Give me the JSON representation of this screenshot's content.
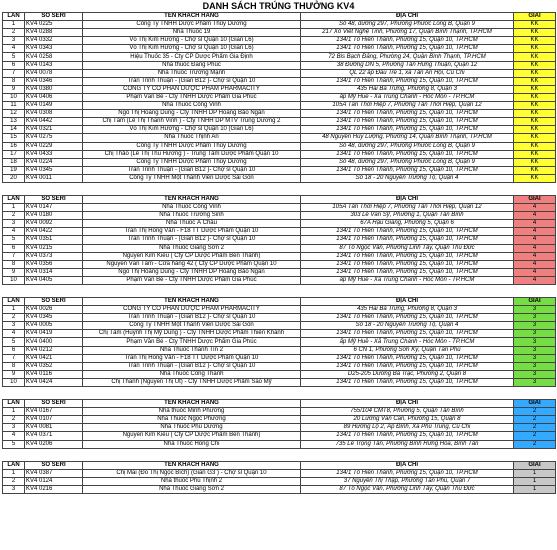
{
  "title": "DANH SÁCH TRÚNG THƯỞNG KV4",
  "headers_first": {
    "lan": "LẦN",
    "seri": "SỐ SERI",
    "name": "TÊN KHÁCH HÀNG",
    "addr": "ĐỊA CHỈ",
    "prize": "GIẢI"
  },
  "headers_other": {
    "lan": "LẦN",
    "seri": "SỐ SERI",
    "name": "TÊN KHÁCH HÀNG",
    "addr": "ĐỊA CHỈ",
    "prize": "GIẢI"
  },
  "colors": {
    "kk": "#ffff33",
    "p4": "#f08080",
    "p3": "#77dd44",
    "p2": "#33aaff",
    "p1": "#c8c8c8"
  },
  "sections": [
    {
      "color": "#ffff33",
      "rows": [
        [
          "1",
          "KV4 0225",
          "Công Ty TNHH Dược Phẩm Thủy Dương",
          "Số 48, đường 297, Phường Phước Long B, Quận 9",
          "KK"
        ],
        [
          "2",
          "KV4 0288",
          "Nhà Thuốc 19",
          "217 Xô Viết Nghệ Tĩnh, Phường 17, Quận Bình Thạnh, TP.HCM",
          "KK"
        ],
        [
          "3",
          "KV4 0332",
          "Võ Thị Kim Hương - Chợ sỉ Quận 10 (Gian L6)",
          "134/1 Tô Hiến Thành, Phường 15, Quận 10, TP.HCM",
          "KK"
        ],
        [
          "4",
          "KV4 0343",
          "Võ Thị Kim Hương - Chợ sỉ Quận 10 (Gian L6)",
          "134/1 Tô Hiến Thành, Phường 15, Quận 10, TP.HCM",
          "KK"
        ],
        [
          "5",
          "KV4 0258",
          "Hiệu Thuốc 35 - Cty CP Dược Phẩm Gia Định",
          "72 Bis Bạch Đằng, Phường 24, Quận Bình Thạnh, TP.HCM",
          "KK"
        ],
        [
          "6",
          "KV4 0143",
          "Nhà thuốc Đăng Phúc",
          "38 Đường DN 5, Phường Tân Hưng Thuận, Quận 12",
          "KK"
        ],
        [
          "7",
          "KV4 0078",
          "Nhà Thuốc Trường Mạnh",
          "QL 22 ấp Đầu Tre 1, xã Tân An Hội, Củ Chi",
          "KK"
        ],
        [
          "8",
          "KV4 0346",
          "Trần Trinh Thuận - (Gian B12 )- Chợ sỉ Quận 10",
          "134/1 Tô Hiến Thành, Phường 15, Quận 10, TP.HCM",
          "KK"
        ],
        [
          "9",
          "KV4 0380",
          "CÔNG TY CỔ PHẦN DƯỢC PHẨM PHARMACITY",
          "435 Hai Bà Trưng, Phường 8, Quận 3",
          "KK"
        ],
        [
          "10",
          "KV4 0406",
          "Phạm Văn Bé - Cty TNHH Dược Phẩm Gia Phúc",
          "ấp Mỹ Huề - Xã Trung Chánh - Hóc Môn - TP.HCM",
          "KK"
        ],
        [
          "11",
          "KV4 0149",
          "Nhà Thuốc Công Vinh",
          "105A Tân Thới Hiệp 7, Phường Tân Thới Hiệp, Quận 12",
          "KK"
        ],
        [
          "12",
          "KV4 0308",
          "Ngô Thị Hoàng Dung - Cty TNHH DP Hoàng Bảo Ngân",
          "134/1 Tô Hiến Thành, Phường 15, Quận 10, TP.HCM",
          "KK"
        ],
        [
          "13",
          "KV4 0442",
          "Chị Tâm (Lê Thị Thanh Vinh ) - Cty TNHH DP MTV Trung Dương 2",
          "134/1 Tô Hiến Thành, Phường 15, Quận 10, TP.HCM",
          "KK"
        ],
        [
          "14",
          "KV4 0321",
          "Võ Thị Kim Hương - Chợ sỉ Quận 10 (Gian L6)",
          "134/1 Tô Hiến Thành, Phường 15, Quận 10, TP.HCM",
          "KK"
        ],
        [
          "15",
          "KV4 0275",
          "Nhà Thuốc Thịnh An",
          "48 Nguyễn Huy Lượng, Phường 14, Quận Bình Thạnh, TP.HCM",
          "KK"
        ],
        [
          "16",
          "KV4 0229",
          "Công Ty TNHH Dược Phẩm Thủy Dương",
          "Số 48, đường 297, Phường Phước Long B, Quận 9",
          "KK"
        ],
        [
          "17",
          "KV4 0433",
          "Chị Thảo (Lê Thị Thu Hương ) - Trung Tâm Dược Phẩm Quận 10",
          "134/1 Tô Hiến Thành, Phường 15, Quận 10, TP.HCM",
          "KK"
        ],
        [
          "18",
          "KV4 0224",
          "Công Ty TNHH Dược Phẩm Thủy Dương",
          "Số 48, đường 297, Phường Phước Long B, Quận 9",
          "KK"
        ],
        [
          "19",
          "KV4 0345",
          "Trần Trinh Thuận - (Gian B12 )- Chợ sỉ Quận 10",
          "134/1 Tô Hiến Thành, Phường 15, Quận 10, TP.HCM",
          "KK"
        ],
        [
          "20",
          "KV4 0011",
          "Công Ty TNHH Một Thành Viên Dược Sài Gòn",
          "Số 18 - 20 Nguyễn Trường Tộ, Quận 4",
          "KK"
        ]
      ]
    },
    {
      "color": "#f08080",
      "rows": [
        [
          "1",
          "KV4 0147",
          "Nhà Thuốc Công Vinh",
          "105A Tân Thới Hiệp 7, Phường Tân Thới Hiệp, Quận 12",
          "4"
        ],
        [
          "2",
          "KV4 0180",
          "Nhà Thuốc Trường Sinh",
          "303 Lê Văn Sỹ, Phường 1, Quận Tân Bình",
          "4"
        ],
        [
          "3",
          "KV4 0092",
          "Nhà Thuốc Á Châu",
          "67A Hậu Giang, Phường 5, Quận 6",
          "4"
        ],
        [
          "4",
          "KV4 0422",
          "Trần Thị Hồng Vân - F18 TT Dược Phẩm Quận 10",
          "134/1 Tô Hiến Thành, Phường 15, Quận 10, TP.HCM",
          "4"
        ],
        [
          "5",
          "KV4 0351",
          "Trần Trinh Thuận - (Gian B12 )- Chợ sỉ Quận 10",
          "134/1 Tô Hiến Thành, Phường 15, Quận 10, TP.HCM",
          "4"
        ],
        [
          "6",
          "KV4 0215",
          "Nhà Thuốc Giang Sơn 2",
          "87 Tô Ngọc Vân, Phường Linh Tây, Quận Thủ Đức",
          "4"
        ],
        [
          "7",
          "KV4 0373",
          "Nguyễn Kim Kiều ( Cty CP Dược Phẩm Bến Thành)",
          "134/1 Tô Hiến Thành, Phường 15, Quận 10, TP.HCM",
          "4"
        ],
        [
          "8",
          "KV4 0356",
          "Nguyễn Văn Tâm - Cửa hàng 42 ( Cty CP Dược Phẩm Quận 10",
          "134/1 Tô Hiến Thành, Phường 15, Quận 10, TP.HCM",
          "4"
        ],
        [
          "9",
          "KV4 0314",
          "Ngô Thị Hoàng Dung - Cty TNHH DP Hoàng Bảo Ngân",
          "134/1 Tô Hiến Thành, Phường 15, Quận 10, TP.HCM",
          "4"
        ],
        [
          "10",
          "KV4 0405",
          "Phạm Văn Bé - Cty TNHH Dược Phẩm Gia Phúc",
          "ấp Mỹ Huề - Xã Trung Chánh - Hóc Môn - TP.HCM",
          "4"
        ]
      ]
    },
    {
      "color": "#77dd44",
      "rows": [
        [
          "1",
          "KV4 0026",
          "CÔNG TY CỔ PHẦN DƯỢC PHẨM PHARMACITY",
          "435 Hai Bà Trưng, Phường 8, Quận 3",
          "3"
        ],
        [
          "2",
          "KV4 0345",
          "Trần Trinh Thuận - (Gian B12 )- Chợ sỉ Quận 10",
          "134/1 Tô Hiến Thành, Phường 15, Quận 10, TP.HCM",
          "3"
        ],
        [
          "3",
          "KV4 0005",
          "Công Ty TNHH Một Thành Viên Dược Sài Gòn",
          "Số 18 - 20 Nguyễn Trường Tộ, Quận 4",
          "3"
        ],
        [
          "4",
          "KV4 0419",
          "Chị Tâm (Huỳnh Thị Mỹ Dung ) - Cty TNHH Dược Phẩm Thiên Khánh",
          "134/1 Tô Hiến Thành, Phường 15, Quận 10, TP.HCM",
          "3"
        ],
        [
          "5",
          "KV4 0400",
          "Phạm Văn Bé - Cty TNHH Dược Phẩm Gia Phúc",
          "ấp Mỹ Huề - Xã Trung Chánh - Hóc Môn - TP.HCM",
          "3"
        ],
        [
          "6",
          "KV4 0212",
          "Nhà Thuốc Thành Tín 2",
          "6 CN 1, Phường Sơn Kỳ, Quận Tân Phú",
          "3"
        ],
        [
          "7",
          "KV4 0421",
          "Trần Thị Hồng Vân - F18 TT Dược Phẩm Quận 10",
          "134/1 Tô Hiến Thành, Phường 15, Quận 10, TP.HCM",
          "3"
        ],
        [
          "8",
          "KV4 0352",
          "Trần Trinh Thuận - (Gian B12 )- Chợ sỉ Quận 10",
          "134/1 Tô Hiến Thành, Phường 15, Quận 10, TP.HCM",
          "3"
        ],
        [
          "9",
          "KV4 0116",
          "Nhà Thuốc Công Thành",
          "D25-205 Dương Bá Trạc, Phường 2, Quận 8",
          "3"
        ],
        [
          "10",
          "KV4 0424",
          "Chị Thanh (Nguyễn Thị Út) - Cty TNHH Dược Phẩm Sao Mỹ",
          "134/1 Tô Hiến Thành, Phường 15, Quận 10, TP.HCM",
          "3"
        ]
      ]
    },
    {
      "color": "#33aaff",
      "rows": [
        [
          "1",
          "KV4 0167",
          "Nhà thuốc Minh Phương",
          "755/104 CMT8, Phường 5, Quận Tân Bình",
          "2"
        ],
        [
          "2",
          "KV4 0107",
          "Nhà Thuốc Ngọc Phương",
          "20 Lương Văn Can, Phường 15, Quận 8",
          "2"
        ],
        [
          "3",
          "KV4 0081",
          "Nhà Thuốc Phú Dương",
          "89 Hương Lộ 2, Ấp Đình, Xã Phú Trung, Củ Chi",
          "2"
        ],
        [
          "4",
          "KV4 0371",
          "Nguyễn Kim Kiều ( Cty CP Dược Phẩm Bến Thành)",
          "134/1 Tô Hiến Thành, Phường 15, Quận 10, TP.HCM",
          "2"
        ],
        [
          "5",
          "KV4 0206",
          "Nhà Thuốc Hồng Chi",
          "735 Lê Trọng Tấn, Phường Bình Hưng Hòa, Bình Tân",
          "2"
        ]
      ]
    },
    {
      "color": "#c8c8c8",
      "rows": [
        [
          "1",
          "KV4 0387",
          "Chị Mai (Đỗ Thị Ngọc Bích) (Gian G3 ) - Chợ sỉ Quận 10",
          "134/1 Tô Hiến Thành, Phường 15, Quận 10, TP.HCM",
          "1"
        ],
        [
          "2",
          "KV4 0124",
          "Nhà thuốc Phú Thịnh 2",
          "37 Nguyễn Thị Thập, Phường Tân Phú, Quận 7",
          "1"
        ],
        [
          "3",
          "KV4 0216",
          "Nhà Thuốc Giang Sơn 2",
          "87 Tô Ngọc Vân, Phường Linh Tây, Quận Thủ Đức",
          "1"
        ]
      ]
    }
  ]
}
